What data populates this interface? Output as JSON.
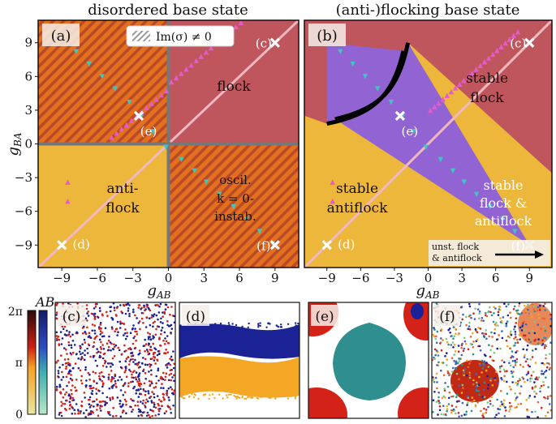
{
  "panels": {
    "a": {
      "title": "disordered base state",
      "letter": "(a)",
      "legend": "Im(σ) ≠ 0",
      "regions": {
        "flock": "flock",
        "anti_1": "anti-",
        "anti_2": "flock",
        "oscil_1": "oscil.",
        "oscil_2": "k = 0-",
        "oscil_3": "instab."
      }
    },
    "b": {
      "title": "(anti-)flocking base state",
      "letter": "(b)",
      "regions": {
        "sflock_1": "stable",
        "sflock_2": "flock",
        "santi_1": "stable",
        "santi_2": "antiflock",
        "both_1": "stable",
        "both_2": "flock &",
        "both_3": "antiflock"
      },
      "arrow_label_1": "unst. flock",
      "arrow_label_2": "& antiflock"
    },
    "bottom": {
      "c": "(c)",
      "d": "(d)",
      "e": "(e)",
      "f": "(f)"
    }
  },
  "axes": {
    "xlabel": "g_AB",
    "ylabel": "g_BA",
    "ticks": [
      "-9",
      "-6",
      "-3",
      "0",
      "3",
      "6",
      "9"
    ],
    "range": [
      -11,
      11
    ]
  },
  "markers": {
    "c": {
      "label": "(c)",
      "x": 9,
      "y": 9
    },
    "d": {
      "label": "(d)",
      "x": -9,
      "y": -9
    },
    "e": {
      "label": "(e)",
      "x": -2.5,
      "y": 2.5
    },
    "f": {
      "label": "(f)",
      "x": 9,
      "y": -9
    }
  },
  "colorbar": {
    "label": "AB",
    "ticks": [
      "2π",
      "π",
      "0"
    ]
  },
  "colors": {
    "flock": "#c0565d",
    "antiflock": "#ecb73a",
    "hatch_bg": "#e2701e",
    "hatch_line": "#b84a28",
    "purple": "#9263d2",
    "diag": "#f0b8c0",
    "cyan": "#3ec7c0",
    "magenta": "#e45ccb",
    "grid": "#777777",
    "blue": "#1a2296",
    "red": "#d42218",
    "orange": "#f4a724",
    "teal": "#2f8f8f"
  }
}
